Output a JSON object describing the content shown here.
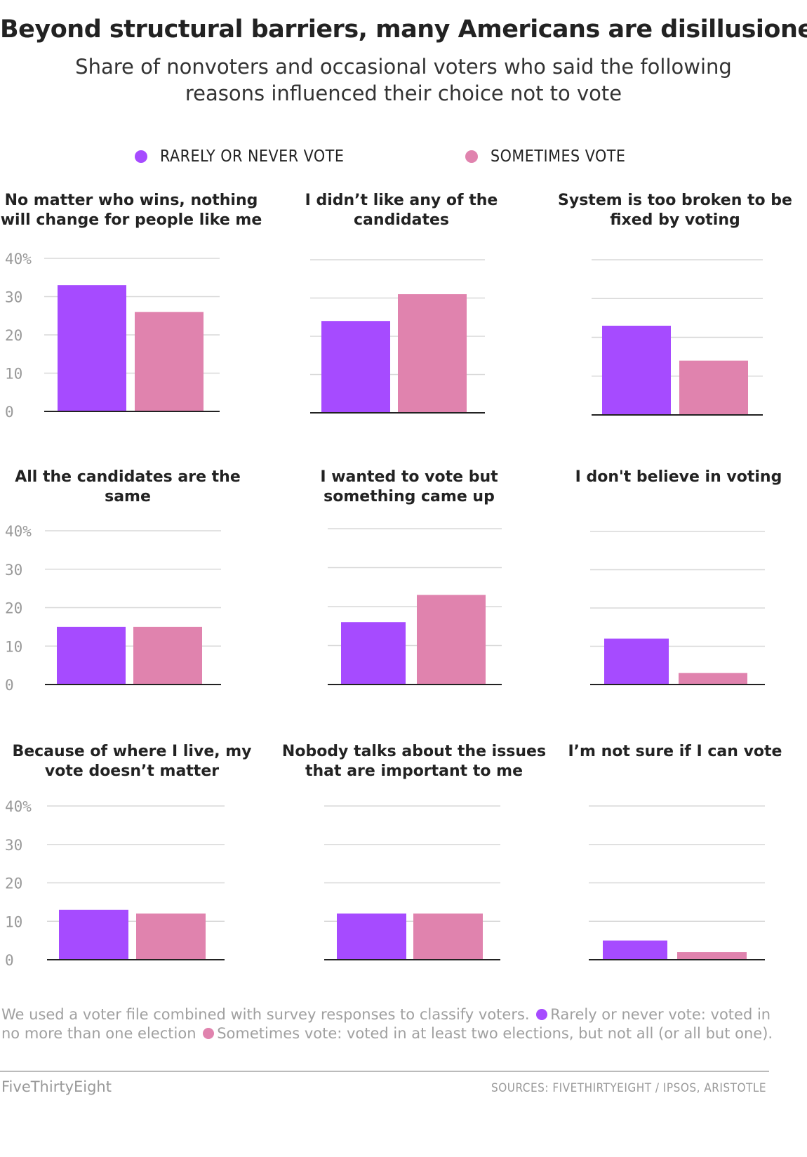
{
  "title": "Beyond structural barriers, many Americans are disillusioned",
  "subtitle": "Share of nonvoters and occasional voters who said the following reasons influenced their choice not to vote",
  "legend": {
    "rarely": "RARELY OR NEVER VOTE",
    "sometimes": "SOMETIMES VOTE"
  },
  "colors": {
    "rarely": "#a64bff",
    "sometimes": "#e083ae",
    "grid": "#d8d8d8",
    "baseline": "#222222",
    "tick": "#999999"
  },
  "chart_data": {
    "type": "bar",
    "series_names": [
      "Rarely or never vote",
      "Sometimes vote"
    ],
    "ylim": [
      0,
      40
    ],
    "yticks": [
      "40%",
      "30",
      "20",
      "10",
      "0"
    ],
    "panels": [
      {
        "title": "No matter who wins, nothing will change for people like me",
        "values": [
          33,
          26
        ]
      },
      {
        "title": "I didn’t like any of the candidates",
        "values": [
          24,
          31
        ]
      },
      {
        "title": "System is too broken to be fixed by voting",
        "values": [
          23,
          14
        ]
      },
      {
        "title": "All the candidates are the same",
        "values": [
          15,
          15
        ]
      },
      {
        "title": "I wanted to vote but something came up",
        "values": [
          16,
          23
        ]
      },
      {
        "title": "I don't believe in voting",
        "values": [
          12,
          3
        ]
      },
      {
        "title": "Because of where I live, my vote doesn’t matter",
        "values": [
          13,
          12
        ]
      },
      {
        "title": "Nobody talks about the issues that are important to me",
        "values": [
          12,
          12
        ]
      },
      {
        "title": "I’m not sure if I can vote",
        "values": [
          5,
          2
        ]
      }
    ]
  },
  "footnote": {
    "text1": "We used a voter file combined with survey responses to classify voters.",
    "text2": "Rarely or never vote: voted in no more than one election",
    "text3": "Sometimes vote: voted in at least two elections, but not all (or all but one)."
  },
  "brand": "FiveThirtyEight",
  "sources": "SOURCES: FIVETHIRTYEIGHT / IPSOS, ARISTOTLE"
}
